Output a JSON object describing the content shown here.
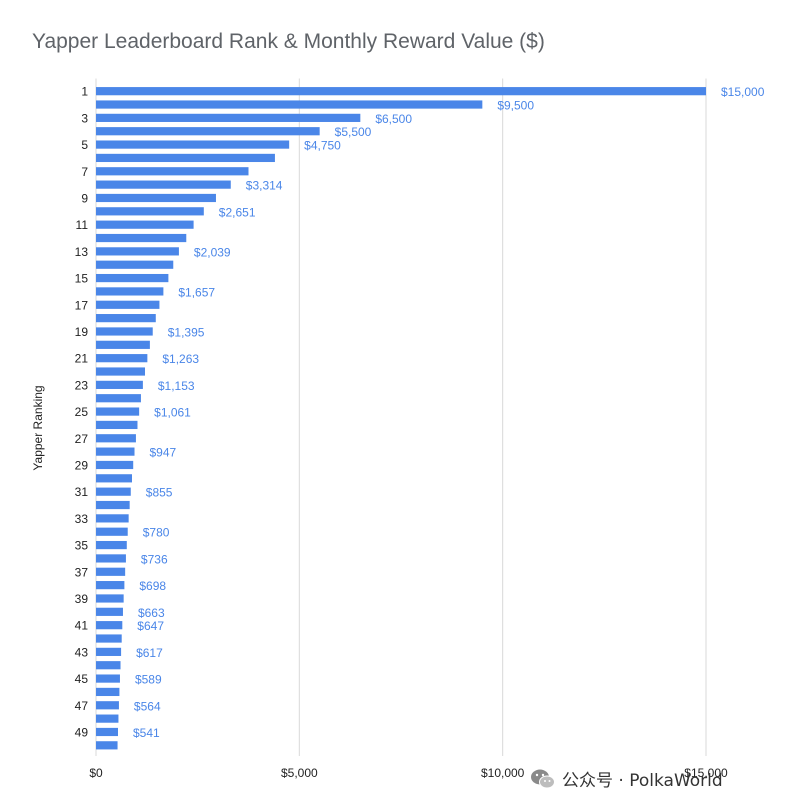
{
  "chart_data": {
    "type": "bar",
    "orientation": "horizontal",
    "title": "Yapper Leaderboard Rank & Monthly Reward Value ($)",
    "ylabel": "Yapper Ranking",
    "xlabel": "",
    "xlim": [
      0,
      15000
    ],
    "x_ticks": [
      0,
      5000,
      10000,
      15000
    ],
    "x_tick_labels": [
      "$0",
      "$5,000",
      "$10,000",
      "$15,000"
    ],
    "grid": true,
    "bar_color": "#4a86e8",
    "label_color": "#4a86e8",
    "categories": [
      "1",
      "2",
      "3",
      "4",
      "5",
      "6",
      "7",
      "8",
      "9",
      "10",
      "11",
      "12",
      "13",
      "14",
      "15",
      "16",
      "17",
      "18",
      "19",
      "20",
      "21",
      "22",
      "23",
      "24",
      "25",
      "26",
      "27",
      "28",
      "29",
      "30",
      "31",
      "32",
      "33",
      "34",
      "35",
      "36",
      "37",
      "38",
      "39",
      "40",
      "41",
      "42",
      "43",
      "44",
      "45",
      "46",
      "47",
      "48",
      "49",
      "50"
    ],
    "category_labels_shown": [
      "1",
      "3",
      "5",
      "7",
      "9",
      "11",
      "13",
      "15",
      "17",
      "19",
      "21",
      "23",
      "25",
      "27",
      "29",
      "31",
      "33",
      "35",
      "37",
      "39",
      "41",
      "43",
      "45",
      "47",
      "49"
    ],
    "values": [
      15000,
      9500,
      6500,
      5500,
      4750,
      4400,
      3750,
      3314,
      2950,
      2651,
      2400,
      2220,
      2039,
      1900,
      1780,
      1657,
      1560,
      1470,
      1395,
      1325,
      1263,
      1205,
      1153,
      1105,
      1061,
      1020,
      982,
      947,
      915,
      885,
      855,
      828,
      803,
      780,
      757,
      736,
      717,
      698,
      680,
      663,
      647,
      632,
      617,
      603,
      589,
      576,
      564,
      552,
      541,
      530
    ],
    "data_labels": [
      {
        "index": 0,
        "text": "$15,000"
      },
      {
        "index": 1,
        "text": "$9,500"
      },
      {
        "index": 2,
        "text": "$6,500"
      },
      {
        "index": 3,
        "text": "$5,500"
      },
      {
        "index": 4,
        "text": "$4,750"
      },
      {
        "index": 7,
        "text": "$3,314"
      },
      {
        "index": 9,
        "text": "$2,651"
      },
      {
        "index": 12,
        "text": "$2,039"
      },
      {
        "index": 15,
        "text": "$1,657"
      },
      {
        "index": 18,
        "text": "$1,395"
      },
      {
        "index": 20,
        "text": "$1,263"
      },
      {
        "index": 22,
        "text": "$1,153"
      },
      {
        "index": 24,
        "text": "$1,061"
      },
      {
        "index": 27,
        "text": "$947"
      },
      {
        "index": 30,
        "text": "$855"
      },
      {
        "index": 33,
        "text": "$780"
      },
      {
        "index": 35,
        "text": "$736"
      },
      {
        "index": 37,
        "text": "$698"
      },
      {
        "index": 39,
        "text": "$663"
      },
      {
        "index": 40,
        "text": "$647"
      },
      {
        "index": 42,
        "text": "$617"
      },
      {
        "index": 44,
        "text": "$589"
      },
      {
        "index": 46,
        "text": "$564"
      },
      {
        "index": 48,
        "text": "$541"
      }
    ]
  },
  "watermark": {
    "text": "公众号 · PolkaWorld",
    "icon": "wechat-icon"
  }
}
